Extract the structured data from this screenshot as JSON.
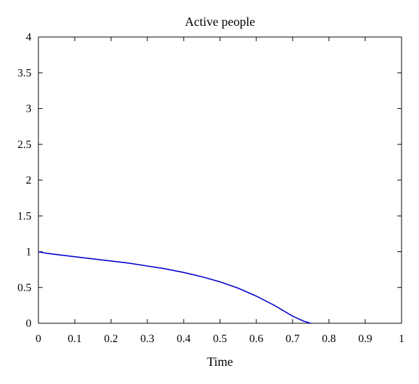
{
  "chart_data": {
    "type": "line",
    "title": "Active people",
    "xlabel": "Time",
    "ylabel": "",
    "xlim": [
      0,
      1
    ],
    "ylim": [
      0,
      4
    ],
    "xticks": [
      "0",
      "0.1",
      "0.2",
      "0.3",
      "0.4",
      "0.5",
      "0.6",
      "0.7",
      "0.8",
      "0.9",
      "1"
    ],
    "yticks": [
      "0",
      "0.5",
      "1",
      "1.5",
      "2",
      "2.5",
      "3",
      "3.5",
      "4"
    ],
    "grid": false,
    "series": [
      {
        "color": "#0000cc",
        "x": [
          0,
          0.02,
          0.05,
          0.1,
          0.15,
          0.2,
          0.25,
          0.3,
          0.35,
          0.4,
          0.45,
          0.5,
          0.55,
          0.6,
          0.65,
          0.7,
          0.73,
          0.75
        ],
        "y": [
          1.0,
          0.98,
          0.96,
          0.93,
          0.9,
          0.87,
          0.84,
          0.8,
          0.76,
          0.71,
          0.65,
          0.58,
          0.49,
          0.38,
          0.25,
          0.1,
          0.03,
          0.0
        ]
      }
    ]
  }
}
